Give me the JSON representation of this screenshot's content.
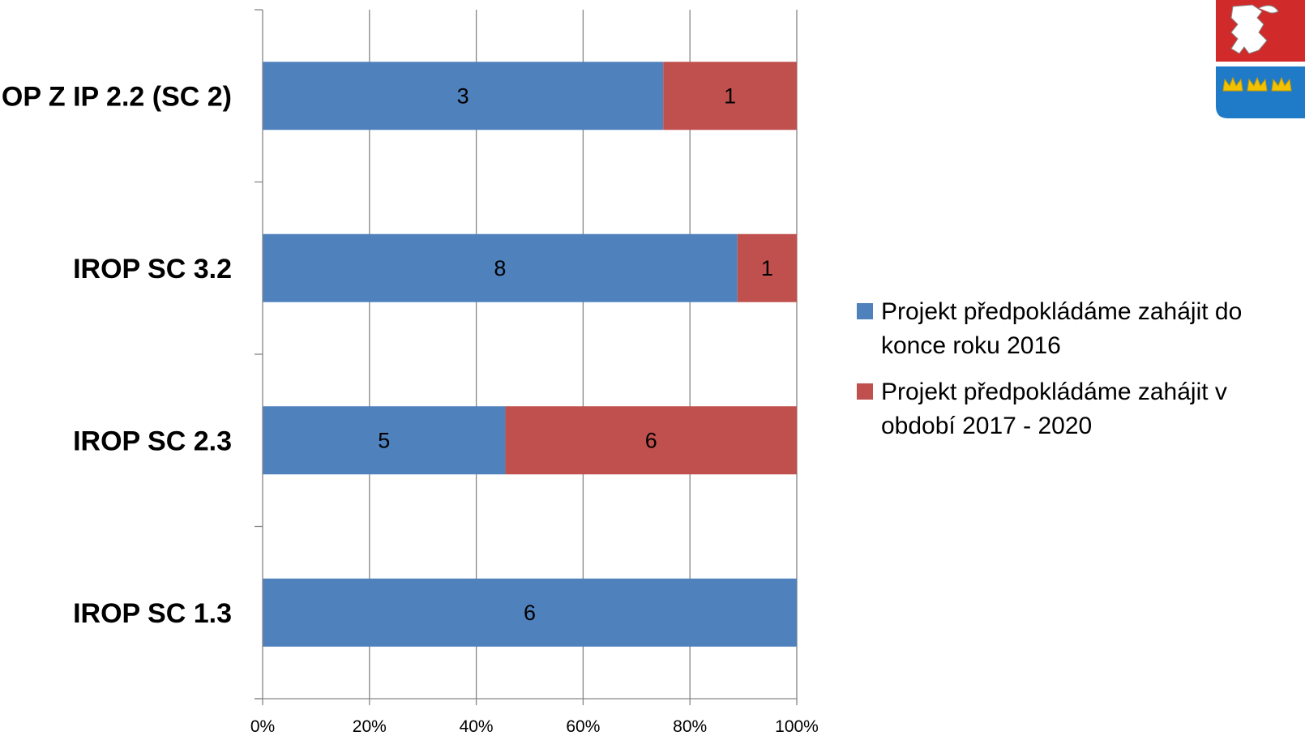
{
  "chart_data": {
    "type": "bar",
    "orientation": "horizontal",
    "stacked": "percent",
    "categories": [
      "OP Z IP 2.2 (SC 2)",
      "IROP SC 3.2",
      "IROP SC 2.3",
      "IROP SC 1.3"
    ],
    "series": [
      {
        "name": "Projekt předpokládáme zahájit do konce roku 2016",
        "values": [
          3,
          8,
          5,
          6
        ],
        "color": "#4F81BD"
      },
      {
        "name": "Projekt předpokládáme zahájit v období 2017 - 2020",
        "values": [
          1,
          1,
          6,
          0
        ],
        "color": "#C0504D"
      }
    ],
    "x_ticks": [
      "0%",
      "20%",
      "40%",
      "60%",
      "80%",
      "100%"
    ],
    "xlim": [
      0,
      100
    ],
    "grid": "vertical",
    "legend_position": "right"
  },
  "legend": {
    "items": [
      {
        "label": "Projekt předpokládáme zahájit do konce roku 2016",
        "color": "#4F81BD"
      },
      {
        "label": "Projekt předpokládáme zahájit v období 2017 - 2020",
        "color": "#C0504D"
      }
    ]
  },
  "emblem": {
    "icon": "coat-of-arms-icon"
  }
}
